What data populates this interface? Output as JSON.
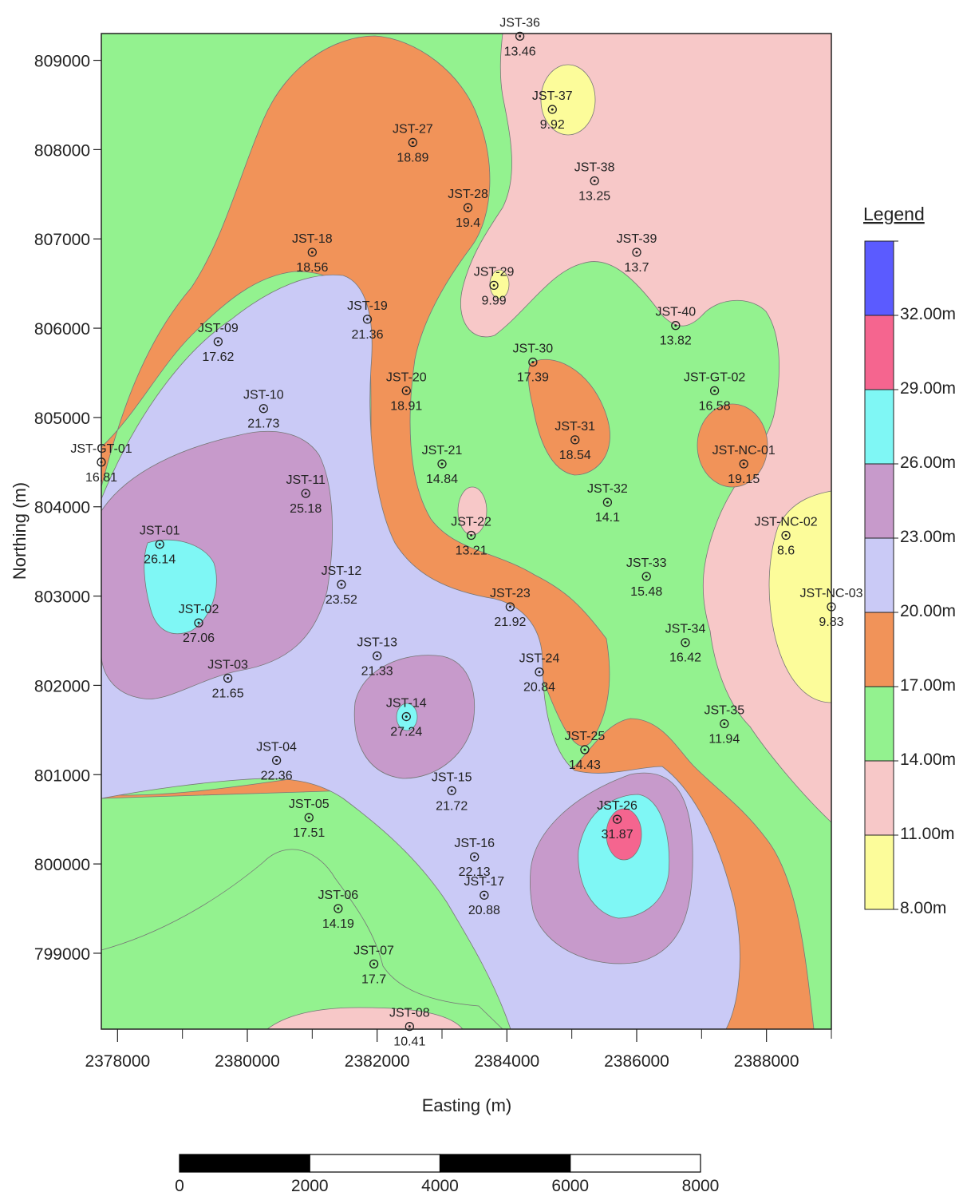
{
  "map": {
    "x_label": "Easting (m)",
    "y_label": "Northing (m)",
    "x_ticks": [
      "2378000",
      "2380000",
      "2382000",
      "2384000",
      "2386000",
      "2388000"
    ],
    "y_ticks": [
      "809000",
      "808000",
      "807000",
      "806000",
      "805000",
      "804000",
      "803000",
      "802000",
      "801000",
      "800000",
      "799000"
    ],
    "x_range": [
      2377750,
      2389000
    ],
    "y_range": [
      798150,
      809300
    ]
  },
  "legend": {
    "title": "Legend",
    "classes": [
      {
        "label": "",
        "color": "#5b5bff"
      },
      {
        "label": "32.00m",
        "color": "#f5658f"
      },
      {
        "label": "29.00m",
        "color": "#7ff7f5"
      },
      {
        "label": "26.00m",
        "color": "#c79acb"
      },
      {
        "label": "23.00m",
        "color": "#cacaf6"
      },
      {
        "label": "20.00m",
        "color": "#f19359"
      },
      {
        "label": "17.00m",
        "color": "#93f28f"
      },
      {
        "label": "14.00m",
        "color": "#f7c8c8"
      },
      {
        "label": "11.00m",
        "color": "#fcfc9a"
      }
    ],
    "bottom_label": "8.00m"
  },
  "scale_bar": {
    "labels": [
      "0",
      "2000",
      "4000",
      "6000",
      "8000"
    ]
  },
  "wells": [
    {
      "name": "JST-36",
      "value": "13.46",
      "x": 2384200,
      "y": 809270
    },
    {
      "name": "JST-37",
      "value": "9.92",
      "x": 2384700,
      "y": 808450
    },
    {
      "name": "JST-27",
      "value": "18.89",
      "x": 2382550,
      "y": 808080
    },
    {
      "name": "JST-38",
      "value": "13.25",
      "x": 2385350,
      "y": 807650
    },
    {
      "name": "JST-28",
      "value": "19.4",
      "x": 2383400,
      "y": 807350
    },
    {
      "name": "JST-18",
      "value": "18.56",
      "x": 2381000,
      "y": 806850
    },
    {
      "name": "JST-39",
      "value": "13.7",
      "x": 2386000,
      "y": 806850
    },
    {
      "name": "JST-29",
      "value": "9.99",
      "x": 2383800,
      "y": 806480
    },
    {
      "name": "JST-19",
      "value": "21.36",
      "x": 2381850,
      "y": 806100
    },
    {
      "name": "JST-40",
      "value": "13.82",
      "x": 2386600,
      "y": 806030
    },
    {
      "name": "JST-09",
      "value": "17.62",
      "x": 2379550,
      "y": 805850
    },
    {
      "name": "JST-30",
      "value": "17.39",
      "x": 2384400,
      "y": 805620
    },
    {
      "name": "JST-20",
      "value": "18.91",
      "x": 2382450,
      "y": 805300
    },
    {
      "name": "JST-GT-02",
      "value": "16.58",
      "x": 2387200,
      "y": 805300
    },
    {
      "name": "JST-10",
      "value": "21.73",
      "x": 2380250,
      "y": 805100
    },
    {
      "name": "JST-31",
      "value": "18.54",
      "x": 2385050,
      "y": 804750
    },
    {
      "name": "JST-GT-01",
      "value": "16.81",
      "x": 2377750,
      "y": 804500
    },
    {
      "name": "JST-21",
      "value": "14.84",
      "x": 2383000,
      "y": 804480
    },
    {
      "name": "JST-NC-01",
      "value": "19.15",
      "x": 2387650,
      "y": 804480
    },
    {
      "name": "JST-11",
      "value": "25.18",
      "x": 2380900,
      "y": 804150
    },
    {
      "name": "JST-32",
      "value": "14.1",
      "x": 2385550,
      "y": 804050
    },
    {
      "name": "JST-22",
      "value": "13.21",
      "x": 2383450,
      "y": 803680
    },
    {
      "name": "JST-NC-02",
      "value": "8.6",
      "x": 2388300,
      "y": 803680
    },
    {
      "name": "JST-01",
      "value": "26.14",
      "x": 2378650,
      "y": 803580
    },
    {
      "name": "JST-33",
      "value": "15.48",
      "x": 2386150,
      "y": 803220
    },
    {
      "name": "JST-12",
      "value": "23.52",
      "x": 2381450,
      "y": 803130
    },
    {
      "name": "JST-23",
      "value": "21.92",
      "x": 2384050,
      "y": 802880
    },
    {
      "name": "JST-NC-03",
      "value": "9.83",
      "x": 2389000,
      "y": 802880
    },
    {
      "name": "JST-02",
      "value": "27.06",
      "x": 2379250,
      "y": 802700
    },
    {
      "name": "JST-34",
      "value": "16.42",
      "x": 2386750,
      "y": 802480
    },
    {
      "name": "JST-13",
      "value": "21.33",
      "x": 2382000,
      "y": 802330
    },
    {
      "name": "JST-24",
      "value": "20.84",
      "x": 2384500,
      "y": 802150
    },
    {
      "name": "JST-03",
      "value": "21.65",
      "x": 2379700,
      "y": 802080
    },
    {
      "name": "JST-14",
      "value": "27.24",
      "x": 2382450,
      "y": 801650
    },
    {
      "name": "JST-35",
      "value": "11.94",
      "x": 2387350,
      "y": 801570
    },
    {
      "name": "JST-25",
      "value": "14.43",
      "x": 2385200,
      "y": 801280
    },
    {
      "name": "JST-04",
      "value": "22.36",
      "x": 2380450,
      "y": 801160
    },
    {
      "name": "JST-15",
      "value": "21.72",
      "x": 2383150,
      "y": 800820
    },
    {
      "name": "JST-05",
      "value": "17.51",
      "x": 2380950,
      "y": 800520
    },
    {
      "name": "JST-26",
      "value": "31.87",
      "x": 2385700,
      "y": 800500
    },
    {
      "name": "JST-16",
      "value": "22.13",
      "x": 2383500,
      "y": 800080
    },
    {
      "name": "JST-17",
      "value": "20.88",
      "x": 2383650,
      "y": 799650
    },
    {
      "name": "JST-06",
      "value": "14.19",
      "x": 2381400,
      "y": 799500
    },
    {
      "name": "JST-07",
      "value": "17.7",
      "x": 2381950,
      "y": 798880
    },
    {
      "name": "JST-08",
      "value": "10.41",
      "x": 2382500,
      "y": 798180
    }
  ]
}
